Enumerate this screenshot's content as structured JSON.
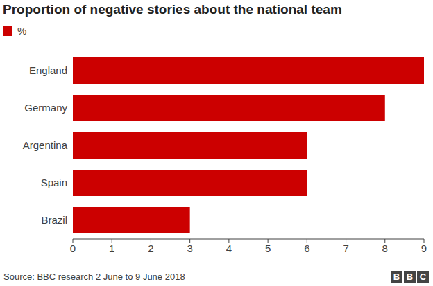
{
  "chart_data": {
    "type": "bar",
    "title": "Proportion of negative stories about the national team",
    "orientation": "horizontal",
    "categories": [
      "England",
      "Germany",
      "Argentina",
      "Spain",
      "Brazil"
    ],
    "series": [
      {
        "name": "%",
        "color": "#cc0000",
        "values": [
          9,
          8,
          6,
          6,
          3
        ]
      }
    ],
    "xlim": [
      0,
      9
    ],
    "xticks": [
      0,
      1,
      2,
      3,
      4,
      5,
      6,
      7,
      8,
      9
    ],
    "grid": false,
    "legend": "top-left",
    "data_labels": false,
    "source": "Source: BBC research 2 June to 9 June 2018",
    "logo": "BBC"
  }
}
